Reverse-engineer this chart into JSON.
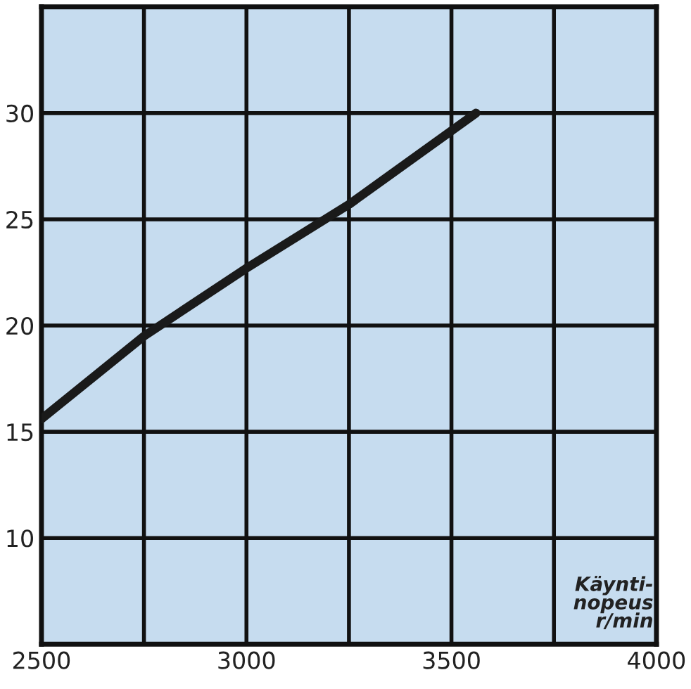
{
  "chart_data": {
    "type": "line",
    "xlabel": "Käynti-\nnopeus\nr/min",
    "x": [
      2500,
      2750,
      3000,
      3250,
      3560
    ],
    "series": [
      {
        "color": "#1a1a1a",
        "values": [
          15.6,
          19.5,
          22.7,
          25.7,
          30
        ]
      }
    ],
    "xlim": [
      2500,
      4000
    ],
    "ylim": [
      5,
      35
    ],
    "xticks": [
      2500,
      {
        "value": 2750,
        "label": null
      },
      3000,
      {
        "value": 3250,
        "label": null
      },
      3500,
      {
        "value": 3750,
        "label": null
      },
      4000
    ],
    "yticks": [
      {
        "value": 5,
        "label": null
      },
      10,
      15,
      20,
      25,
      30,
      {
        "value": 35,
        "label": null
      }
    ],
    "grid": true,
    "marker": "none",
    "line_style": "solid"
  }
}
